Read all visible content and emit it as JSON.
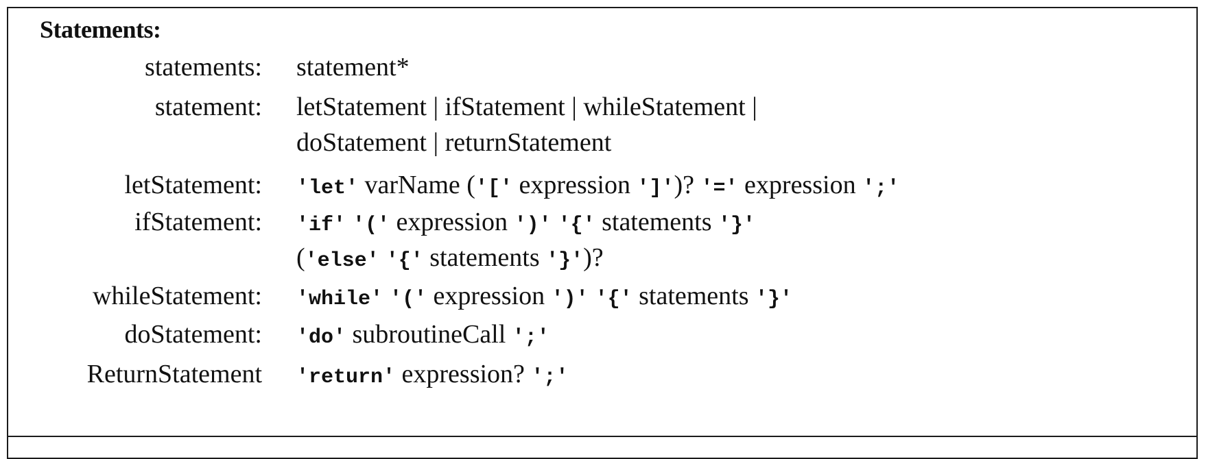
{
  "heading": "Statements:",
  "rules": {
    "statements": {
      "name": "statements:",
      "rhs": "statement*"
    },
    "statement": {
      "name": "statement:",
      "line1": "letStatement | ifStatement | whileStatement |",
      "line2": "doStatement | returnStatement"
    },
    "letStatement": {
      "name": "letStatement:",
      "t_let": "'let'",
      "t1": " varName (",
      "t_lbr": "'['",
      "t2": " expression ",
      "t_rbr": "']'",
      "t3": ")? ",
      "t_eq": "'='",
      "t4": " expression ",
      "t_semi": "';'"
    },
    "ifStatement": {
      "name": "ifStatement:",
      "t_if": "'if'",
      "t_lp": "'('",
      "t1": " expression ",
      "t_rp": "')'",
      "t_lb": "'{'",
      "t2": " statements ",
      "t_rb": "'}'",
      "l2_open": "(",
      "t_else": "'else'",
      "t_lb2": "'{'",
      "t3": " statements ",
      "t_rb2": "'}'",
      "l2_close": ")?"
    },
    "whileStatement": {
      "name": "whileStatement:",
      "t_while": "'while'",
      "t_lp": "'('",
      "t1": " expression ",
      "t_rp": "')'",
      "t_lb": "'{'",
      "t2": " statements ",
      "t_rb": "'}'"
    },
    "doStatement": {
      "name": "doStatement:",
      "t_do": "'do'",
      "t1": " subroutineCall ",
      "t_semi": "';'"
    },
    "returnStatement": {
      "name": "ReturnStatement",
      "t_return": "'return'",
      "t1": " expression? ",
      "t_semi": "';'"
    }
  }
}
